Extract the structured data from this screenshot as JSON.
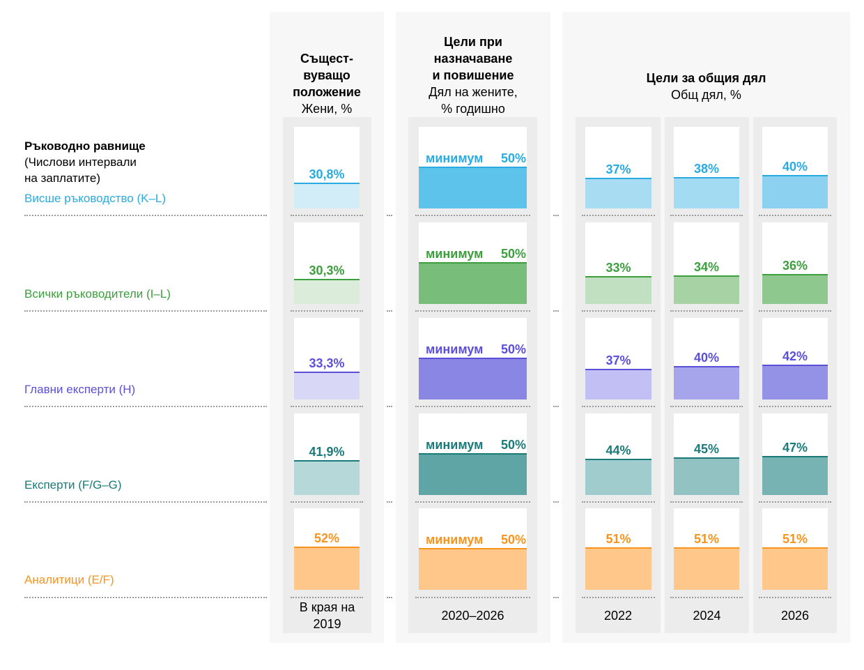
{
  "chart_data": {
    "type": "bar",
    "title": "",
    "row_header": {
      "title": "Ръководно равнище",
      "subtitle_line1": "(Числови интервали",
      "subtitle_line2": "на заплатите)"
    },
    "ylim": [
      0,
      100
    ],
    "rows": [
      {
        "label": "Висше ръководство (K–L)",
        "color": "#29abe2",
        "light": "#d3edf8",
        "mid": "#5ec3ea",
        "fills": [
          "#d3edf8",
          "#5ec3ea",
          "#a8dcf3",
          "#a3dbf2",
          "#8dd1f0"
        ]
      },
      {
        "label": "Всички ръководители (I–L)",
        "color": "#3c9e3c",
        "light": "#dcecda",
        "mid": "#79bd7a",
        "fills": [
          "#dcecda",
          "#79bd7a",
          "#c1dfc1",
          "#a6d2a4",
          "#8fc88e"
        ]
      },
      {
        "label": "Главни експерти (H)",
        "color": "#5b4fd8",
        "light": "#d8d7f5",
        "mid": "#8987e3",
        "fills": [
          "#d8d7f5",
          "#8987e3",
          "#c1bff3",
          "#a6a4ea",
          "#9492e6"
        ]
      },
      {
        "label": "Експерти (F/G–G)",
        "color": "#1a7a7a",
        "light": "#b7d8d9",
        "mid": "#5fa5a5",
        "fills": [
          "#b7d8d9",
          "#5fa5a5",
          "#a0cccd",
          "#92c2c2",
          "#77b3b3"
        ]
      },
      {
        "label": "Аналитици (E/F)",
        "color": "#f7941d",
        "light": "#ffc78a",
        "mid": "#ffc78a",
        "fills": [
          "#ffc78a",
          "#ffc78a",
          "#ffc78a",
          "#ffc78a",
          "#ffc78a"
        ]
      }
    ],
    "groups": [
      {
        "title_lines": [
          "Същест-",
          "вуващо",
          "положение"
        ],
        "subtitle_lines": [
          "Жени, %"
        ],
        "columns": [
          {
            "footer_lines": [
              "В края на",
              "2019"
            ],
            "values": [
              30.8,
              30.3,
              33.3,
              41.9,
              52
            ],
            "labels": [
              "30,8%",
              "30,3%",
              "33,3%",
              "41,9%",
              "52%"
            ]
          }
        ]
      },
      {
        "title_lines": [
          "Цели при",
          "назначаване",
          "и повишение"
        ],
        "subtitle_lines": [
          "Дял на жените,",
          "% годишно"
        ],
        "columns": [
          {
            "footer_lines": [
              "2020–2026"
            ],
            "values": [
              50,
              50,
              50,
              50,
              50
            ],
            "prefix": "минимум",
            "labels": [
              "50%",
              "50%",
              "50%",
              "50%",
              "50%"
            ]
          }
        ]
      },
      {
        "title_lines": [
          "Цели за общия  дял"
        ],
        "subtitle_lines": [
          "Общ дял, %"
        ],
        "columns": [
          {
            "footer_lines": [
              "2022"
            ],
            "values": [
              37,
              33,
              37,
              44,
              51
            ],
            "labels": [
              "37%",
              "33%",
              "37%",
              "44%",
              "51%"
            ]
          },
          {
            "footer_lines": [
              "2024"
            ],
            "values": [
              38,
              34,
              40,
              45,
              51
            ],
            "labels": [
              "38%",
              "34%",
              "40%",
              "45%",
              "51%"
            ]
          },
          {
            "footer_lines": [
              "2026"
            ],
            "values": [
              40,
              36,
              42,
              47,
              51
            ],
            "labels": [
              "40%",
              "36%",
              "42%",
              "47%",
              "51%"
            ]
          }
        ]
      }
    ]
  }
}
